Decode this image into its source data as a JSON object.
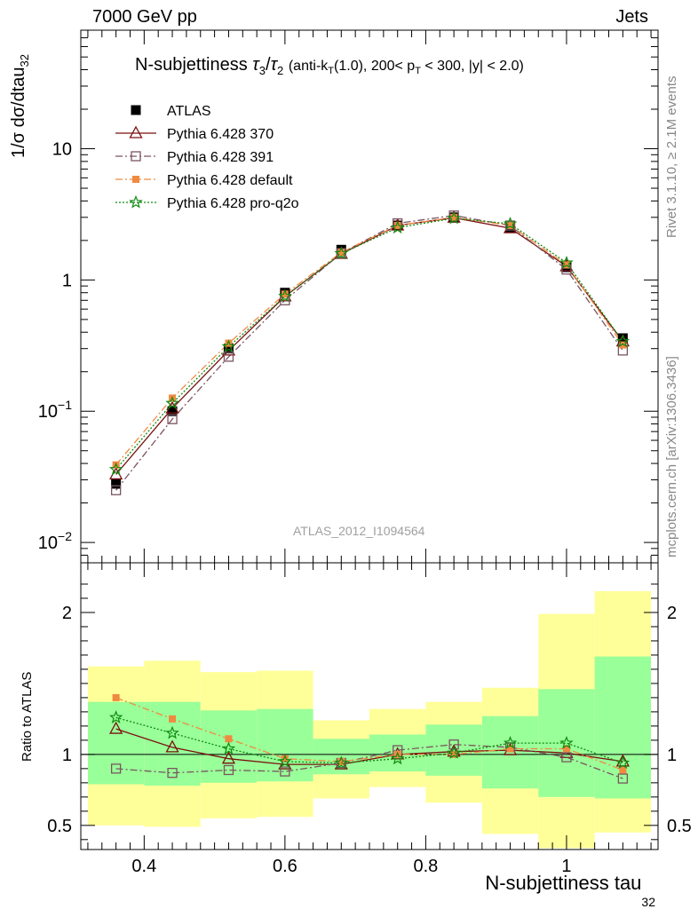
{
  "header": {
    "left": "7000 GeV pp",
    "right": "Jets"
  },
  "side_labels": {
    "rivet": "Rivet 3.1.10, ≥ 2.1M events",
    "mcplots": "mcplots.cern.ch [arXiv:1306.3436]"
  },
  "watermark": "ATLAS_2012_I1094564",
  "colors": {
    "atlas": "#000000",
    "p370": "#7b1010",
    "p391": "#7a5560",
    "pdefault": "#f08a40",
    "pq2o": "#108a10",
    "band_outer": "#ffff99",
    "band_inner": "#99ff99"
  },
  "chart_data": [
    {
      "type": "line",
      "title": "N-subjettiness τ3/τ2 (anti-kT(1.0), 200< pT < 300, |y| < 2.0)",
      "ylabel": "1/σ dσ/dtau32",
      "yscale": "log",
      "ylim": [
        0.007,
        80
      ],
      "xlim": [
        0.31,
        1.13
      ],
      "ytick_labels": [
        "10−2",
        "10−1",
        "1",
        "10"
      ],
      "x": [
        0.36,
        0.44,
        0.52,
        0.6,
        0.68,
        0.76,
        0.84,
        0.92,
        1.0,
        1.08
      ],
      "legend_position": "top-left",
      "series": [
        {
          "name": "ATLAS",
          "marker": "square-filled",
          "values": [
            0.028,
            0.1,
            0.3,
            0.8,
            1.7,
            2.6,
            3.0,
            2.5,
            1.25,
            0.36
          ]
        },
        {
          "name": "Pythia 6.428 370",
          "marker": "triangle-open",
          "values": [
            0.033,
            0.105,
            0.29,
            0.75,
            1.58,
            2.6,
            2.98,
            2.48,
            1.27,
            0.34
          ]
        },
        {
          "name": "Pythia 6.428 391",
          "marker": "square-open",
          "values": [
            0.025,
            0.087,
            0.26,
            0.7,
            1.6,
            2.7,
            3.1,
            2.6,
            1.2,
            0.29
          ]
        },
        {
          "name": "Pythia 6.428 default",
          "marker": "square-small",
          "values": [
            0.039,
            0.126,
            0.33,
            0.78,
            1.62,
            2.6,
            3.0,
            2.6,
            1.3,
            0.32
          ]
        },
        {
          "name": "Pythia 6.428 pro-q2o",
          "marker": "star",
          "values": [
            0.036,
            0.115,
            0.31,
            0.75,
            1.59,
            2.5,
            2.95,
            2.68,
            1.35,
            0.34
          ]
        }
      ]
    },
    {
      "type": "line",
      "xlabel": "N-subjettiness tau32",
      "ylabel": "Ratio to ATLAS",
      "ylim": [
        0.33,
        2.35
      ],
      "xlim": [
        0.31,
        1.13
      ],
      "xtick_labels": [
        "0.4",
        "0.6",
        "0.8",
        "1"
      ],
      "ytick_labels": [
        "0.5",
        "1",
        "2"
      ],
      "bands": {
        "edges": [
          0.32,
          0.4,
          0.48,
          0.56,
          0.64,
          0.72,
          0.8,
          0.88,
          0.96,
          1.04,
          1.12
        ],
        "outer_low": [
          0.5,
          0.49,
          0.55,
          0.56,
          0.69,
          0.77,
          0.66,
          0.44,
          0.34,
          0.45
        ],
        "outer_high": [
          1.62,
          1.66,
          1.58,
          1.59,
          1.24,
          1.32,
          1.37,
          1.47,
          1.99,
          2.15
        ],
        "inner_low": [
          0.79,
          0.78,
          0.8,
          0.81,
          0.86,
          0.88,
          0.85,
          0.76,
          0.7,
          0.69
        ],
        "inner_high": [
          1.37,
          1.37,
          1.31,
          1.32,
          1.11,
          1.14,
          1.21,
          1.27,
          1.46,
          1.69
        ]
      },
      "series": [
        {
          "name": "Pythia 6.428 370",
          "values": [
            1.18,
            1.05,
            0.97,
            0.93,
            0.93,
            1.0,
            1.02,
            1.03,
            1.01,
            0.95
          ]
        },
        {
          "name": "Pythia 6.428 391",
          "values": [
            0.9,
            0.87,
            0.89,
            0.88,
            0.94,
            1.03,
            1.07,
            1.05,
            0.98,
            0.83
          ]
        },
        {
          "name": "Pythia 6.428 default",
          "values": [
            1.4,
            1.25,
            1.11,
            0.97,
            0.95,
            1.0,
            1.0,
            1.04,
            1.04,
            0.89
          ]
        },
        {
          "name": "Pythia 6.428 pro-q2o",
          "values": [
            1.26,
            1.15,
            1.04,
            0.95,
            0.94,
            0.97,
            1.01,
            1.08,
            1.08,
            0.94
          ]
        }
      ]
    }
  ]
}
